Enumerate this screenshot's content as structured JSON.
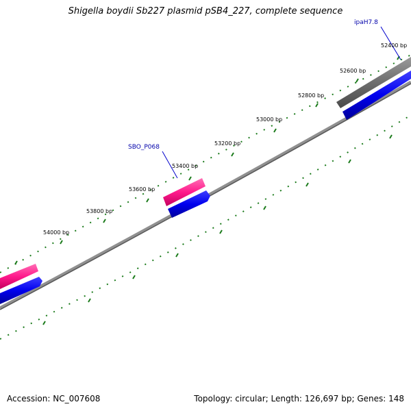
{
  "title": "Shigella boydii Sb227 plasmid pSB4_227, complete sequence",
  "footer": {
    "accession": "Accession: NC_007608",
    "summary": "Topology: circular; Length: 126,697 bp; Genes: 148"
  },
  "ticks": [
    {
      "label": "52400 bp"
    },
    {
      "label": "52600 bp"
    },
    {
      "label": "52800 bp"
    },
    {
      "label": "53000 bp"
    },
    {
      "label": "53200 bp"
    },
    {
      "label": "53400 bp"
    },
    {
      "label": "53600 bp"
    },
    {
      "label": "53800 bp"
    },
    {
      "label": "54000 bp"
    }
  ],
  "gene_labels": [
    {
      "label": "ipaH7.8"
    },
    {
      "label": "SBO_P068"
    }
  ],
  "colors": {
    "backbone": "#808080",
    "tick": "#1a7a1a",
    "cds_forward": "#0000ee",
    "feature_pink": "#ff1a8c",
    "feature_grey": "#6e6e6e",
    "label": "#0000aa"
  }
}
